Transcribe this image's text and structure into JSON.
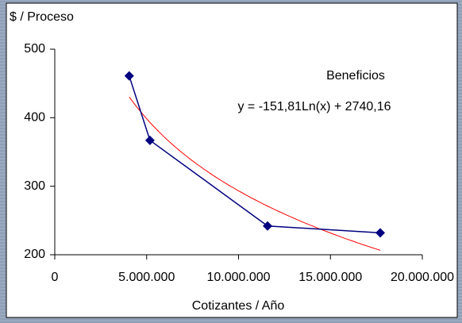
{
  "chart_data": {
    "type": "line",
    "x_label": "Cotizantes / Año",
    "y_label": "$ / Proceso",
    "x": [
      4050000,
      5180000,
      11580000,
      17710000
    ],
    "series": [
      {
        "name": "Beneficios",
        "color": "#000080",
        "values": [
          461,
          367,
          242,
          232
        ]
      }
    ],
    "trendline": {
      "label": "y = -151,81Ln(x) + 2740,16",
      "a": -151.81,
      "b": 2740.16,
      "color": "#ff0000"
    },
    "xlim": [
      0,
      20000000
    ],
    "xticks": [
      0,
      {
        "value": 5000000,
        "label": "5.000.000"
      },
      {
        "value": 10000000,
        "label": "10.000.000"
      },
      {
        "value": 15000000,
        "label": "15.000.000"
      },
      {
        "value": 20000000,
        "label": "20.000.000"
      }
    ],
    "ylim": [
      200,
      500
    ],
    "yticks": [
      200,
      300,
      400,
      500
    ],
    "grid": false
  }
}
